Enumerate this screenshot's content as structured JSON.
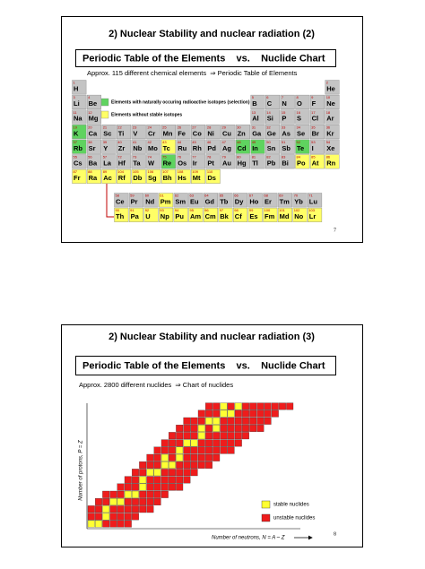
{
  "slides": [
    {
      "title": "2) Nuclear Stability and nuclear radiation (2)",
      "subtitle": "Periodic Table of the Elements    vs.    Nuclide Chart",
      "text": "Approx. 115 different chemical elements  ⇒ Periodic Table of Elements",
      "page": "7",
      "periodic_table": {
        "cell_color": "#c4c4c4",
        "legend": [
          {
            "label": "Elements with naturally occuring radioactive isotopes (selection)",
            "color": "#5fd35f",
            "elements": [
              19,
              37,
              48,
              49,
              52,
              75
            ]
          },
          {
            "label": "Elements without stable isotopes",
            "color": "#ffff66",
            "elements": [
              43,
              61,
              84,
              85,
              86,
              87,
              88,
              89,
              90,
              91,
              92,
              93,
              94,
              95,
              96,
              97,
              98,
              99,
              100,
              101,
              102,
              103,
              104,
              105,
              106,
              107,
              108,
              109,
              110
            ]
          }
        ],
        "elements": [
          [
            1,
            "H"
          ],
          [
            2,
            "He"
          ],
          [
            3,
            "Li"
          ],
          [
            4,
            "Be"
          ],
          [
            5,
            "B"
          ],
          [
            6,
            "C"
          ],
          [
            7,
            "N"
          ],
          [
            8,
            "O"
          ],
          [
            9,
            "F"
          ],
          [
            10,
            "Ne"
          ],
          [
            11,
            "Na"
          ],
          [
            12,
            "Mg"
          ],
          [
            13,
            "Al"
          ],
          [
            14,
            "Si"
          ],
          [
            15,
            "P"
          ],
          [
            16,
            "S"
          ],
          [
            17,
            "Cl"
          ],
          [
            18,
            "Ar"
          ],
          [
            19,
            "K"
          ],
          [
            20,
            "Ca"
          ],
          [
            21,
            "Sc"
          ],
          [
            22,
            "Ti"
          ],
          [
            23,
            "V"
          ],
          [
            24,
            "Cr"
          ],
          [
            25,
            "Mn"
          ],
          [
            26,
            "Fe"
          ],
          [
            27,
            "Co"
          ],
          [
            28,
            "Ni"
          ],
          [
            29,
            "Cu"
          ],
          [
            30,
            "Zn"
          ],
          [
            31,
            "Ga"
          ],
          [
            32,
            "Ge"
          ],
          [
            33,
            "As"
          ],
          [
            34,
            "Se"
          ],
          [
            35,
            "Br"
          ],
          [
            36,
            "Kr"
          ],
          [
            37,
            "Rb"
          ],
          [
            38,
            "Sr"
          ],
          [
            39,
            "Y"
          ],
          [
            40,
            "Zr"
          ],
          [
            41,
            "Nb"
          ],
          [
            42,
            "Mo"
          ],
          [
            43,
            "Tc"
          ],
          [
            44,
            "Ru"
          ],
          [
            45,
            "Rh"
          ],
          [
            46,
            "Pd"
          ],
          [
            47,
            "Ag"
          ],
          [
            48,
            "Cd"
          ],
          [
            49,
            "In"
          ],
          [
            50,
            "Sn"
          ],
          [
            51,
            "Sb"
          ],
          [
            52,
            "Te"
          ],
          [
            53,
            "I"
          ],
          [
            54,
            "Xe"
          ],
          [
            55,
            "Cs"
          ],
          [
            56,
            "Ba"
          ],
          [
            57,
            "La"
          ],
          [
            58,
            "Ce"
          ],
          [
            59,
            "Pr"
          ],
          [
            60,
            "Nd"
          ],
          [
            61,
            "Pm"
          ],
          [
            62,
            "Sm"
          ],
          [
            63,
            "Eu"
          ],
          [
            64,
            "Gd"
          ],
          [
            65,
            "Tb"
          ],
          [
            66,
            "Dy"
          ],
          [
            67,
            "Ho"
          ],
          [
            68,
            "Er"
          ],
          [
            69,
            "Tm"
          ],
          [
            70,
            "Yb"
          ],
          [
            71,
            "Lu"
          ],
          [
            72,
            "Hf"
          ],
          [
            73,
            "Ta"
          ],
          [
            74,
            "W"
          ],
          [
            75,
            "Re"
          ],
          [
            76,
            "Os"
          ],
          [
            77,
            "Ir"
          ],
          [
            78,
            "Pt"
          ],
          [
            79,
            "Au"
          ],
          [
            80,
            "Hg"
          ],
          [
            81,
            "Tl"
          ],
          [
            82,
            "Pb"
          ],
          [
            83,
            "Bi"
          ],
          [
            84,
            "Po"
          ],
          [
            85,
            "At"
          ],
          [
            86,
            "Rn"
          ],
          [
            87,
            "Fr"
          ],
          [
            88,
            "Ra"
          ],
          [
            89,
            "Ac"
          ],
          [
            90,
            "Th"
          ],
          [
            91,
            "Pa"
          ],
          [
            92,
            "U"
          ],
          [
            93,
            "Np"
          ],
          [
            94,
            "Pu"
          ],
          [
            95,
            "Am"
          ],
          [
            96,
            "Cm"
          ],
          [
            97,
            "Bk"
          ],
          [
            98,
            "Cf"
          ],
          [
            99,
            "Es"
          ],
          [
            100,
            "Fm"
          ],
          [
            101,
            "Md"
          ],
          [
            102,
            "No"
          ],
          [
            103,
            "Lr"
          ],
          [
            104,
            "Rf"
          ],
          [
            105,
            "Db"
          ],
          [
            106,
            "Sg"
          ],
          [
            107,
            "Bh"
          ],
          [
            108,
            "Hs"
          ],
          [
            109,
            "Mt"
          ],
          [
            110,
            "Ds"
          ]
        ]
      }
    },
    {
      "title": "2) Nuclear Stability and nuclear radiation (3)",
      "subtitle": "Periodic Table of the Elements    vs.    Nuclide Chart",
      "text": "Approx. 2800 different nuclides  ⇒ Chart of nuclides",
      "page": "8",
      "nuclide_chart": {
        "y_label": "Number of protons, P = Z",
        "x_label": "Number of neutrons, N = A – Z",
        "legend": [
          {
            "label": "stable nuclides",
            "color": "#ffff33"
          },
          {
            "label": "unstable nuclides",
            "color": "#ee1c1c"
          }
        ]
      }
    }
  ]
}
